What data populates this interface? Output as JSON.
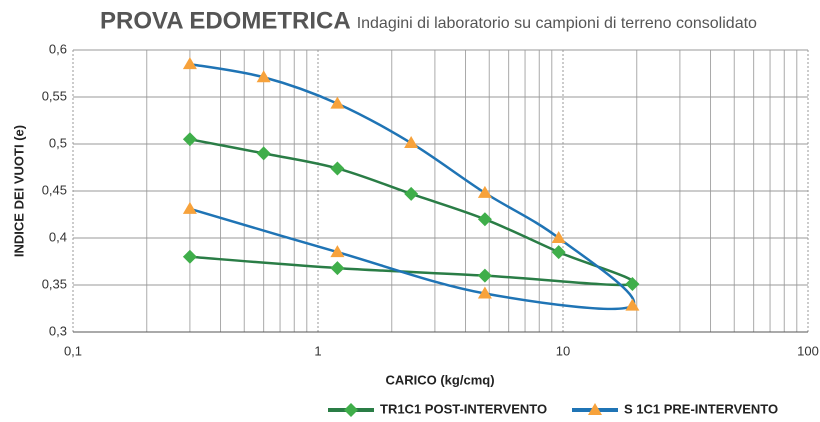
{
  "chart_data": {
    "type": "line",
    "title": "PROVA EDOMETRICA",
    "subtitle": "Indagini di laboratorio su campioni di terreno consolidato",
    "x_label": "CARICO (kg/cmq)",
    "y_label": "INDICE DEI VUOTI (e)",
    "log_x": true,
    "grid": true,
    "legend": "bottom",
    "xlim": [
      0.1,
      100
    ],
    "ylim": [
      0.3,
      0.6
    ],
    "xticks": [
      {
        "value": 0.1,
        "label": "0,1"
      },
      1,
      10,
      100
    ],
    "xminorticks": [
      0.2,
      0.3,
      0.4,
      0.5,
      0.6,
      0.7,
      0.8,
      0.9,
      2,
      3,
      4,
      5,
      6,
      7,
      8,
      9,
      20,
      30,
      40,
      50,
      60,
      70,
      80,
      90
    ],
    "yticks": [
      {
        "value": 0.3,
        "label": "0,3"
      },
      {
        "value": 0.35,
        "label": "0,35"
      },
      {
        "value": 0.4,
        "label": "0,4"
      },
      {
        "value": 0.45,
        "label": "0,45"
      },
      {
        "value": 0.5,
        "label": "0,5"
      },
      {
        "value": 0.55,
        "label": "0,55"
      },
      {
        "value": 0.6,
        "label": "0,6"
      }
    ],
    "series": [
      {
        "name": "TR1C1 POST-INTERVENTO",
        "color": "#2a7d46",
        "marker_color": "#3fae4a",
        "marker": "diamond",
        "x": [
          0.3,
          0.6,
          1.2,
          2.4,
          4.8,
          9.6,
          19.2,
          4.8,
          1.2,
          0.3
        ],
        "values": [
          0.505,
          0.49,
          0.474,
          0.447,
          0.42,
          0.385,
          0.351,
          0.36,
          0.368,
          0.38
        ]
      },
      {
        "name": "S 1C1 PRE-INTERVENTO",
        "color": "#1f74b5",
        "marker_color": "#f7a23b",
        "marker": "triangle",
        "x": [
          0.3,
          0.6,
          1.2,
          2.4,
          4.8,
          9.6,
          19.2,
          4.8,
          1.2,
          0.3
        ],
        "values": [
          0.585,
          0.571,
          0.543,
          0.501,
          0.448,
          0.4,
          0.328,
          0.341,
          0.385,
          0.431
        ]
      }
    ]
  }
}
